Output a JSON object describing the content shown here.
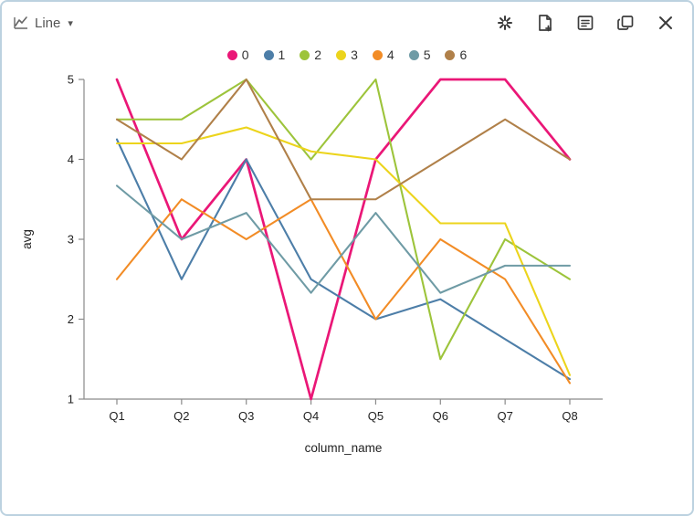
{
  "header": {
    "chart_type_label": "Line",
    "icons": [
      "snowflake",
      "new-page",
      "table",
      "duplicate",
      "close"
    ]
  },
  "chart_data": {
    "type": "line",
    "title": "",
    "categories": [
      "Q1",
      "Q2",
      "Q3",
      "Q4",
      "Q5",
      "Q6",
      "Q7",
      "Q8"
    ],
    "series": [
      {
        "name": "0",
        "color": "#ea1777",
        "values": [
          5,
          3,
          4,
          1,
          4,
          5,
          5,
          4
        ]
      },
      {
        "name": "1",
        "color": "#4d7ea8",
        "values": [
          4.25,
          2.5,
          4,
          2.5,
          2,
          2.25,
          1.75,
          1.25
        ]
      },
      {
        "name": "2",
        "color": "#9dc43b",
        "values": [
          4.5,
          4.5,
          5,
          4,
          5,
          1.5,
          3,
          2.5
        ]
      },
      {
        "name": "3",
        "color": "#ecd41c",
        "values": [
          4.2,
          4.2,
          4.4,
          4.1,
          4,
          3.2,
          3.2,
          1.3
        ]
      },
      {
        "name": "4",
        "color": "#f28c26",
        "values": [
          2.5,
          3.5,
          3,
          3.5,
          2,
          3,
          2.5,
          1.2
        ]
      },
      {
        "name": "5",
        "color": "#6f9ba5",
        "values": [
          3.67,
          3,
          3.33,
          2.33,
          3.33,
          2.33,
          2.67,
          2.67
        ]
      },
      {
        "name": "6",
        "color": "#b08049",
        "values": [
          4.5,
          4,
          5,
          3.5,
          3.5,
          4,
          4.5,
          4
        ]
      }
    ],
    "xlabel": "column_name",
    "ylabel": "avg",
    "ylim": [
      1,
      5
    ],
    "yticks": [
      1,
      2,
      3,
      4,
      5
    ],
    "legend_position": "top",
    "grid": false
  }
}
